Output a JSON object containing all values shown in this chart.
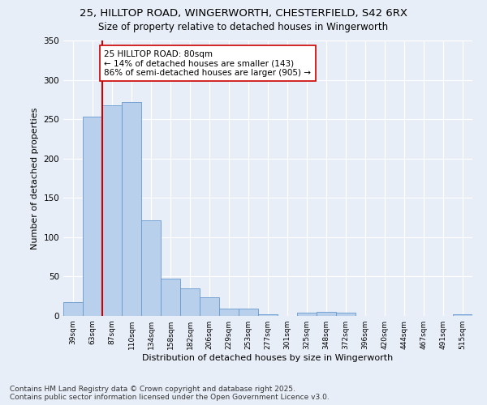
{
  "title_line1": "25, HILLTOP ROAD, WINGERWORTH, CHESTERFIELD, S42 6RX",
  "title_line2": "Size of property relative to detached houses in Wingerworth",
  "xlabel": "Distribution of detached houses by size in Wingerworth",
  "ylabel": "Number of detached properties",
  "categories": [
    "39sqm",
    "63sqm",
    "87sqm",
    "110sqm",
    "134sqm",
    "158sqm",
    "182sqm",
    "206sqm",
    "229sqm",
    "253sqm",
    "277sqm",
    "301sqm",
    "325sqm",
    "348sqm",
    "372sqm",
    "396sqm",
    "420sqm",
    "444sqm",
    "467sqm",
    "491sqm",
    "515sqm"
  ],
  "values": [
    17,
    253,
    268,
    272,
    121,
    47,
    35,
    24,
    9,
    9,
    2,
    0,
    4,
    5,
    4,
    0,
    0,
    0,
    0,
    0,
    2
  ],
  "bar_color": "#b8d0eb",
  "bar_edgecolor": "#6699cc",
  "bar_linewidth": 0.6,
  "vline_x_index": 1.5,
  "vline_color": "#cc0000",
  "annotation_text": "25 HILLTOP ROAD: 80sqm\n← 14% of detached houses are smaller (143)\n86% of semi-detached houses are larger (905) →",
  "annotation_box_color": "#ffffff",
  "annotation_box_edgecolor": "#cc0000",
  "annotation_fontsize": 7.5,
  "ylim": [
    0,
    350
  ],
  "yticks": [
    0,
    50,
    100,
    150,
    200,
    250,
    300,
    350
  ],
  "bg_color": "#e8eef8",
  "grid_color": "#ffffff",
  "footer_line1": "Contains HM Land Registry data © Crown copyright and database right 2025.",
  "footer_line2": "Contains public sector information licensed under the Open Government Licence v3.0.",
  "footer_fontsize": 6.5,
  "title_fontsize1": 9.5,
  "title_fontsize2": 8.5,
  "xlabel_fontsize": 8,
  "ylabel_fontsize": 8
}
